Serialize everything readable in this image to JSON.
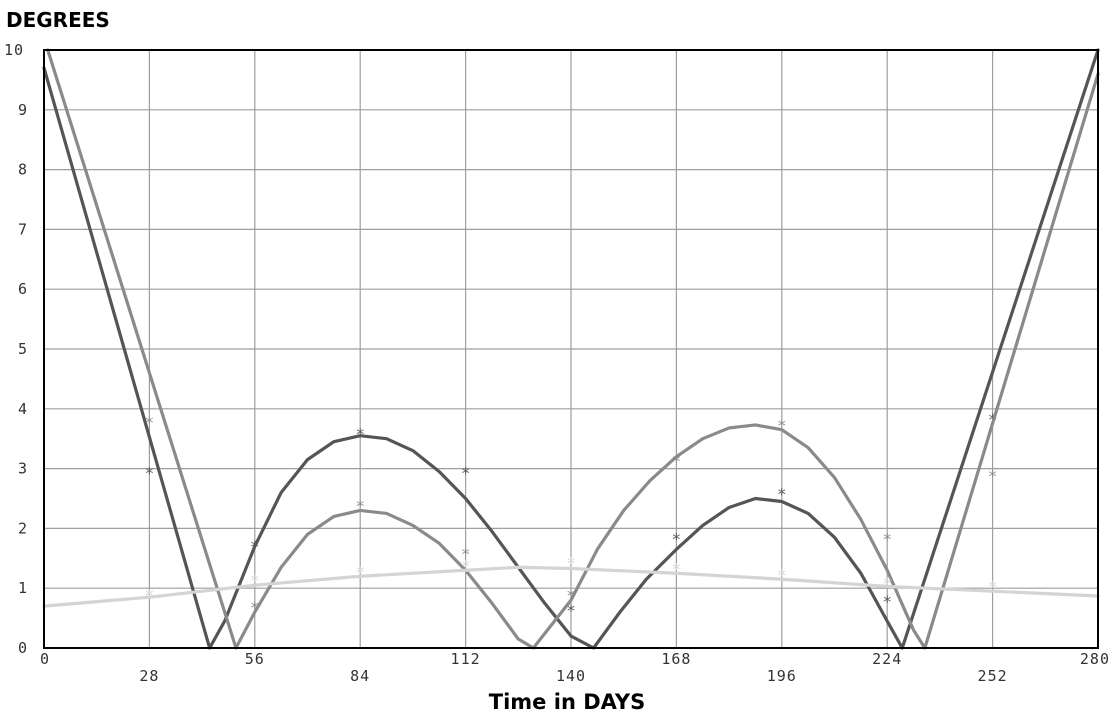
{
  "chart_data": {
    "type": "line",
    "title": "DEGREES",
    "xlabel": "Time in DAYS",
    "ylabel": "",
    "xlim": [
      0,
      280
    ],
    "ylim": [
      0,
      10
    ],
    "x_ticks": [
      "0",
      "28",
      "56",
      "84",
      "112",
      "140",
      "168",
      "196",
      "224",
      "252",
      "280"
    ],
    "y_ticks": [
      "0",
      "1",
      "2",
      "3",
      "4",
      "5",
      "6",
      "7",
      "8",
      "9",
      "10"
    ],
    "grid": true,
    "legend": "none",
    "series": [
      {
        "color": "#555555",
        "curve": [
          [
            0,
            9.7
          ],
          [
            44,
            0
          ],
          [
            48,
            0.45
          ],
          [
            56,
            1.7
          ],
          [
            63,
            2.6
          ],
          [
            70,
            3.15
          ],
          [
            77,
            3.45
          ],
          [
            84,
            3.55
          ],
          [
            91,
            3.5
          ],
          [
            98,
            3.3
          ],
          [
            105,
            2.95
          ],
          [
            112,
            2.5
          ],
          [
            119,
            1.95
          ],
          [
            126,
            1.35
          ],
          [
            133,
            0.75
          ],
          [
            140,
            0.2
          ],
          [
            146,
            0
          ],
          [
            153,
            0.6
          ],
          [
            160,
            1.15
          ],
          [
            168,
            1.65
          ],
          [
            175,
            2.05
          ],
          [
            182,
            2.35
          ],
          [
            189,
            2.5
          ],
          [
            196,
            2.45
          ],
          [
            203,
            2.25
          ],
          [
            210,
            1.85
          ],
          [
            217,
            1.25
          ],
          [
            224,
            0.45
          ],
          [
            228,
            0
          ],
          [
            280,
            10
          ]
        ],
        "markers": [
          [
            28,
            2.95
          ],
          [
            56,
            1.72
          ],
          [
            84,
            3.6
          ],
          [
            112,
            2.95
          ],
          [
            140,
            0.65
          ],
          [
            168,
            1.85
          ],
          [
            196,
            2.6
          ],
          [
            224,
            0.8
          ],
          [
            252,
            3.85
          ]
        ]
      },
      {
        "color": "#8a8a8a",
        "curve": [
          [
            1,
            10
          ],
          [
            51,
            0
          ],
          [
            56,
            0.6
          ],
          [
            63,
            1.35
          ],
          [
            70,
            1.9
          ],
          [
            77,
            2.2
          ],
          [
            84,
            2.3
          ],
          [
            91,
            2.25
          ],
          [
            98,
            2.05
          ],
          [
            105,
            1.75
          ],
          [
            112,
            1.3
          ],
          [
            119,
            0.75
          ],
          [
            126,
            0.15
          ],
          [
            130,
            0
          ],
          [
            140,
            0.8
          ],
          [
            147,
            1.65
          ],
          [
            154,
            2.3
          ],
          [
            161,
            2.8
          ],
          [
            168,
            3.2
          ],
          [
            175,
            3.5
          ],
          [
            182,
            3.68
          ],
          [
            189,
            3.73
          ],
          [
            196,
            3.65
          ],
          [
            203,
            3.35
          ],
          [
            210,
            2.85
          ],
          [
            217,
            2.15
          ],
          [
            224,
            1.3
          ],
          [
            231,
            0.3
          ],
          [
            234,
            0
          ],
          [
            280,
            9.6
          ]
        ],
        "markers": [
          [
            28,
            3.8
          ],
          [
            56,
            0.7
          ],
          [
            84,
            2.4
          ],
          [
            112,
            1.6
          ],
          [
            140,
            0.9
          ],
          [
            168,
            3.15
          ],
          [
            196,
            3.75
          ],
          [
            224,
            1.85
          ],
          [
            252,
            2.9
          ]
        ]
      },
      {
        "color": "#d4d4d4",
        "curve": [
          [
            0,
            0.7
          ],
          [
            28,
            0.85
          ],
          [
            56,
            1.05
          ],
          [
            84,
            1.2
          ],
          [
            112,
            1.3
          ],
          [
            126,
            1.35
          ],
          [
            140,
            1.33
          ],
          [
            168,
            1.25
          ],
          [
            196,
            1.15
          ],
          [
            224,
            1.03
          ],
          [
            252,
            0.95
          ],
          [
            280,
            0.87
          ]
        ],
        "markers": [
          [
            28,
            0.9
          ],
          [
            56,
            1.15
          ],
          [
            84,
            1.3
          ],
          [
            112,
            1.4
          ],
          [
            140,
            1.45
          ],
          [
            168,
            1.35
          ],
          [
            196,
            1.25
          ],
          [
            224,
            1.1
          ],
          [
            252,
            1.05
          ]
        ]
      }
    ]
  }
}
